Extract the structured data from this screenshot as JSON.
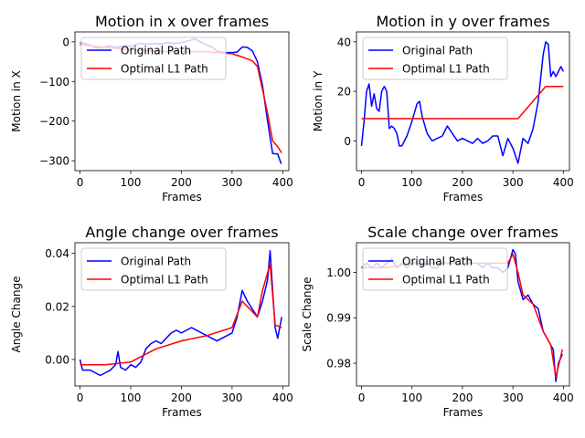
{
  "chart_data": [
    {
      "type": "line",
      "title": "Motion in x over frames",
      "xlabel": "Frames",
      "ylabel": "Motion in X",
      "xlim": [
        -10,
        412
      ],
      "ylim": [
        -325,
        25
      ],
      "xticks": [
        0,
        100,
        200,
        300,
        400
      ],
      "xtick_labels": [
        "0",
        "100",
        "200",
        "300",
        "400"
      ],
      "yticks": [
        0,
        -100,
        -200,
        -300
      ],
      "ytick_labels": [
        "0",
        "−100",
        "−200",
        "−300"
      ],
      "legend_loc": "upper-left",
      "series": [
        {
          "name": "Original Path",
          "color": "#0000ff",
          "x": [
            0,
            10,
            20,
            30,
            40,
            50,
            60,
            70,
            80,
            90,
            100,
            110,
            120,
            130,
            140,
            150,
            160,
            170,
            180,
            190,
            200,
            210,
            220,
            225,
            230,
            240,
            250,
            260,
            270,
            280,
            290,
            300,
            310,
            320,
            330,
            340,
            350,
            360,
            370,
            380,
            390,
            397
          ],
          "y": [
            -2,
            -4,
            -8,
            -15,
            -16,
            -12,
            -10,
            -14,
            -12,
            -10,
            -11,
            -7,
            -4,
            -6,
            -5,
            -4,
            -6,
            -2,
            -3,
            -4,
            -2,
            1,
            5,
            8,
            5,
            -2,
            -8,
            -13,
            -23,
            -26,
            -27,
            -27,
            -26,
            -13,
            -14,
            -23,
            -50,
            -110,
            -200,
            -282,
            -283,
            -308
          ]
        },
        {
          "name": "Optimal L1 Path",
          "color": "#ff0000",
          "x": [
            0,
            50,
            100,
            150,
            200,
            250,
            300,
            320,
            340,
            350,
            360,
            370,
            380,
            390,
            398
          ],
          "y": [
            -7,
            -14,
            -20,
            -24,
            -25,
            -25,
            -30,
            -38,
            -48,
            -62,
            -120,
            -180,
            -250,
            -265,
            -280
          ]
        }
      ]
    },
    {
      "type": "line",
      "title": "Motion in y over frames",
      "xlabel": "Frames",
      "ylabel": "Motion in Y",
      "xlim": [
        -10,
        412
      ],
      "ylim": [
        -12,
        44
      ],
      "xticks": [
        0,
        100,
        200,
        300,
        400
      ],
      "xtick_labels": [
        "0",
        "100",
        "200",
        "300",
        "400"
      ],
      "yticks": [
        0,
        20,
        40
      ],
      "ytick_labels": [
        "0",
        "20",
        "40"
      ],
      "legend_loc": "upper-left",
      "series": [
        {
          "name": "Original Path",
          "color": "#0000ff",
          "x": [
            0,
            5,
            10,
            15,
            20,
            25,
            30,
            35,
            40,
            45,
            50,
            55,
            60,
            65,
            70,
            75,
            80,
            90,
            100,
            110,
            115,
            120,
            130,
            140,
            150,
            160,
            170,
            180,
            190,
            200,
            210,
            220,
            230,
            240,
            250,
            260,
            270,
            280,
            290,
            300,
            310,
            320,
            330,
            340,
            350,
            360,
            365,
            370,
            375,
            380,
            385,
            390,
            395,
            400
          ],
          "y": [
            -2,
            8,
            20,
            23,
            14,
            19,
            13,
            12,
            20,
            22,
            20,
            5,
            6,
            5,
            3,
            -2,
            -2,
            2,
            8,
            15,
            16,
            10,
            3,
            0,
            1,
            2,
            6,
            3,
            0,
            1,
            0,
            -1,
            1,
            -1,
            0,
            2,
            2,
            -6,
            1,
            -3,
            -9,
            1,
            -1,
            5,
            16,
            35,
            40,
            39,
            26,
            28,
            26,
            28,
            30,
            28
          ]
        },
        {
          "name": "Optimal L1 Path",
          "color": "#ff0000",
          "x": [
            0,
            100,
            200,
            310,
            365,
            370,
            400
          ],
          "y": [
            9,
            9,
            9,
            9,
            22,
            22,
            22
          ]
        }
      ]
    },
    {
      "type": "line",
      "title": "Angle change over frames",
      "xlabel": "Frames",
      "ylabel": "Angle Change",
      "xlim": [
        -10,
        412
      ],
      "ylim": [
        -0.01,
        0.044
      ],
      "xticks": [
        0,
        100,
        200,
        300,
        400
      ],
      "xtick_labels": [
        "0",
        "100",
        "200",
        "300",
        "400"
      ],
      "yticks": [
        0.0,
        0.02,
        0.04
      ],
      "ytick_labels": [
        "0.00",
        "0.02",
        "0.04"
      ],
      "legend_loc": "upper-left",
      "series": [
        {
          "name": "Original Path",
          "color": "#0000ff",
          "x": [
            0,
            5,
            10,
            20,
            30,
            40,
            50,
            60,
            70,
            75,
            80,
            90,
            100,
            110,
            120,
            130,
            140,
            150,
            160,
            170,
            180,
            190,
            200,
            210,
            220,
            230,
            240,
            250,
            260,
            270,
            280,
            290,
            300,
            310,
            320,
            330,
            340,
            350,
            360,
            370,
            375,
            380,
            385,
            390,
            398
          ],
          "y": [
            0.0,
            -0.004,
            -0.004,
            -0.004,
            -0.005,
            -0.006,
            -0.005,
            -0.004,
            -0.002,
            0.003,
            -0.003,
            -0.004,
            -0.002,
            -0.003,
            -0.001,
            0.004,
            0.006,
            0.007,
            0.006,
            0.008,
            0.01,
            0.011,
            0.01,
            0.011,
            0.012,
            0.011,
            0.01,
            0.009,
            0.008,
            0.007,
            0.008,
            0.009,
            0.01,
            0.016,
            0.026,
            0.022,
            0.019,
            0.016,
            0.022,
            0.03,
            0.041,
            0.026,
            0.012,
            0.008,
            0.016
          ]
        },
        {
          "name": "Optimal L1 Path",
          "color": "#ff0000",
          "x": [
            0,
            50,
            100,
            130,
            150,
            200,
            250,
            300,
            320,
            330,
            350,
            360,
            375,
            385,
            398
          ],
          "y": [
            -0.002,
            -0.002,
            -0.001,
            0.002,
            0.004,
            0.007,
            0.009,
            0.012,
            0.022,
            0.02,
            0.016,
            0.026,
            0.036,
            0.013,
            0.012
          ]
        }
      ]
    },
    {
      "type": "line",
      "title": "Scale change over frames",
      "xlabel": "Frames",
      "ylabel": "Scale Change",
      "xlim": [
        -10,
        412
      ],
      "ylim": [
        0.975,
        1.0065
      ],
      "xticks": [
        0,
        100,
        200,
        300,
        400
      ],
      "xtick_labels": [
        "0",
        "100",
        "200",
        "300",
        "400"
      ],
      "yticks": [
        1.0,
        0.99,
        0.98
      ],
      "ytick_labels": [
        "1.00",
        "0.99",
        "0.98"
      ],
      "legend_loc": "upper-left",
      "series": [
        {
          "name": "Original Path",
          "color": "#0000ff",
          "x": [
            0,
            10,
            20,
            30,
            40,
            50,
            60,
            70,
            80,
            90,
            100,
            110,
            120,
            130,
            140,
            150,
            160,
            170,
            180,
            190,
            200,
            210,
            220,
            230,
            240,
            250,
            260,
            270,
            280,
            290,
            300,
            305,
            310,
            320,
            330,
            340,
            350,
            360,
            370,
            380,
            385,
            390,
            398
          ],
          "y": [
            1.001,
            1.002,
            1.001,
            1.002,
            1.001,
            1.002,
            1.003,
            1.001,
            1.002,
            1.001,
            1.002,
            1.002,
            1.001,
            1.002,
            1.001,
            1.001,
            1.002,
            1.002,
            1.002,
            1.003,
            1.003,
            1.003,
            1.002,
            1.002,
            1.001,
            1.002,
            1.001,
            1.001,
            1.0,
            1.001,
            1.005,
            1.004,
            0.998,
            0.994,
            0.995,
            0.993,
            0.992,
            0.987,
            0.985,
            0.983,
            0.976,
            0.98,
            0.982
          ]
        },
        {
          "name": "Optimal L1 Path",
          "color": "#ff0000",
          "x": [
            0,
            50,
            100,
            150,
            200,
            250,
            290,
            300,
            310,
            320,
            340,
            360,
            375,
            385,
            398
          ],
          "y": [
            1.001,
            1.001,
            1.002,
            1.002,
            1.002,
            1.002,
            1.002,
            1.004,
            1.0,
            0.995,
            0.993,
            0.987,
            0.984,
            0.977,
            0.983
          ]
        }
      ]
    }
  ]
}
